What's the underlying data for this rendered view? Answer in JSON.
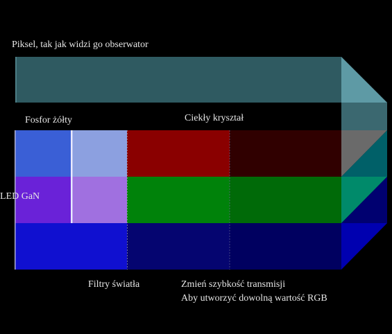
{
  "labels": {
    "pixel": "Piksel, tak jak widzi go obserwator",
    "phosphor": "Fosfor żółty",
    "liquid_crystal": "Ciekły kryształ",
    "led": "LED GaN",
    "filters": "Filtry światła",
    "change_line1": "Zmień szybkość transmisji",
    "change_line2": "Aby utworzyć dowolną wartość RGB"
  },
  "colors": {
    "background": "#000000",
    "pixel_beam": "#2f5960",
    "led_blue": "#3a5fd6",
    "led_violet": "#6a22d8",
    "led_deep_blue": "#1010d0",
    "phosphor_blue": "#8ca0e0",
    "phosphor_violet": "#a070e0",
    "red_filter": "#8a0000",
    "red_attenuated": "#300000",
    "green_filter": "#00820a",
    "green_attenuated": "#006a08",
    "blue_filter": "#050570",
    "blue_attenuated": "#000060"
  }
}
